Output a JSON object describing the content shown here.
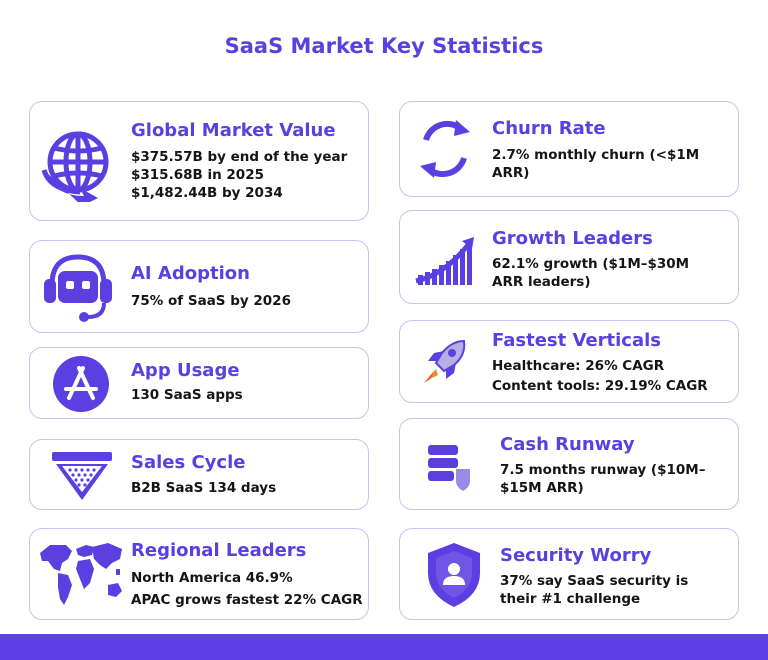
{
  "title": "SaaS Market Key Statistics",
  "colors": {
    "accent": "#5b3fe0",
    "card_border": "#c9c2f0",
    "bottom_bar": "#5d40e6"
  },
  "cards": {
    "global_market_value": {
      "icon": "globe-icon",
      "title": "Global Market Value",
      "lines": [
        "$375.57B by end of the year",
        "$315.68B in 2025",
        "$1,482.44B by 2034"
      ]
    },
    "ai_adoption": {
      "icon": "robot-headset-icon",
      "title": "AI Adoption",
      "lines": [
        "75% of SaaS by 2026"
      ]
    },
    "app_usage": {
      "icon": "app-store-icon",
      "title": "App Usage",
      "lines": [
        "130 SaaS apps"
      ]
    },
    "sales_cycle": {
      "icon": "funnel-icon",
      "title": "Sales Cycle",
      "lines": [
        "B2B SaaS 134 days"
      ]
    },
    "regional_leaders": {
      "icon": "world-map-icon",
      "title": "Regional Leaders",
      "lines": [
        "North America 46.9%",
        "APAC grows fastest 22% CAGR"
      ]
    },
    "churn_rate": {
      "icon": "refresh-cycle-icon",
      "title": "Churn Rate",
      "lines": [
        "2.7% monthly churn (<$1M ARR)"
      ]
    },
    "growth_leaders": {
      "icon": "growth-chart-icon",
      "title": "Growth Leaders",
      "lines": [
        "62.1% growth ($1M–$30M ARR leaders)"
      ]
    },
    "fastest_verticals": {
      "icon": "rocket-icon",
      "title": "Fastest Verticals",
      "lines": [
        "Healthcare: 26% CAGR",
        "Content tools: 29.19% CAGR"
      ]
    },
    "cash_runway": {
      "icon": "database-shield-icon",
      "title": "Cash Runway",
      "lines": [
        "7.5 months runway ($10M–$15M ARR)"
      ]
    },
    "security_worry": {
      "icon": "security-shield-user-icon",
      "title": "Security Worry",
      "lines": [
        "37% say SaaS security is their #1 challenge"
      ]
    }
  }
}
